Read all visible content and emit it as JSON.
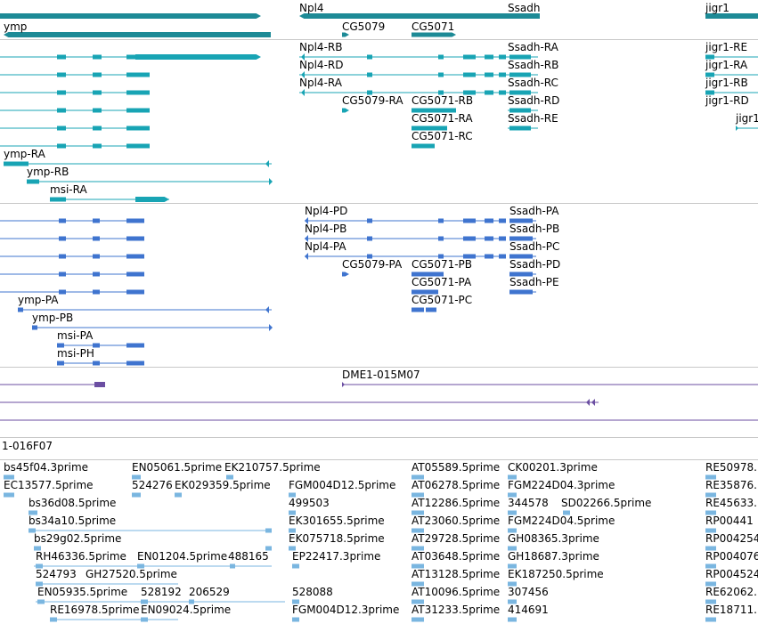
{
  "colors": {
    "gene": "#1d8a96",
    "transcript": "#18a4b4",
    "protein": "#3f74cf",
    "clone": "#6b4ea2",
    "est": "#7ab6e0",
    "separator": "#c8c8c8"
  },
  "genes": [
    "ymp",
    "Npl4",
    "CG5079",
    "CG5071",
    "Ssadh",
    "jigr1"
  ],
  "transcripts": [
    "Npl4-RB",
    "Ssadh-RA",
    "jigr1-RE",
    "Npl4-RD",
    "Ssadh-RB",
    "jigr1-RA",
    "Npl4-RA",
    "Ssadh-RC",
    "jigr1-RB",
    "CG5079-RA",
    "CG5071-RB",
    "Ssadh-RD",
    "jigr1-RD",
    "CG5071-RA",
    "Ssadh-RE",
    "jigr1",
    "CG5071-RC",
    "ymp-RA",
    "ymp-RB",
    "msi-RA"
  ],
  "proteins": [
    "Npl4-PD",
    "Ssadh-PA",
    "Npl4-PB",
    "Ssadh-PB",
    "Npl4-PA",
    "Ssadh-PC",
    "CG5079-PA",
    "CG5071-PB",
    "Ssadh-PD",
    "ymp-PA",
    "CG5071-PA",
    "Ssadh-PE",
    "CG5071-PC",
    "ymp-PB",
    "msi-PA",
    "msi-PH"
  ],
  "clones": [
    "DME1-015M07",
    "1-016F07"
  ],
  "ests": [
    "bs45f04.3prime",
    "EN05061.5prime",
    "EK210757.5prime",
    "AT05589.5prime",
    "CK00201.3prime",
    "RE50978.",
    "EC13577.5prime",
    "524276",
    "EK029359.5prime",
    "FGM004D12.5prime",
    "AT06278.5prime",
    "FGM224D04.3prime",
    "RE35876.",
    "bs36d08.5prime",
    "499503",
    "AT12286.5prime",
    "344578",
    "SD02266.5prime",
    "RE45633.",
    "bs34a10.5prime",
    "EK301655.5prime",
    "AT23060.5prime",
    "FGM224D04.5prime",
    "RP00441",
    "bs29g02.5prime",
    "EK075718.5prime",
    "AT29728.5prime",
    "GH08365.3prime",
    "RP004254",
    "RH46336.5prime",
    "EN01204.5prime",
    "488165",
    "EP22417.3prime",
    "AT03648.5prime",
    "GH18687.3prime",
    "RP004076",
    "524793",
    "GH27520.5prime",
    "AT13128.5prime",
    "EK187250.5prime",
    "RP004524",
    "EN05935.5prime",
    "528192",
    "206529",
    "528088",
    "AT10096.5prime",
    "307456",
    "RE62062.",
    "RE16978.5prime",
    "EN09024.5prime",
    "FGM004D12.3prime",
    "AT31233.5prime",
    "414691",
    "RE18711."
  ]
}
